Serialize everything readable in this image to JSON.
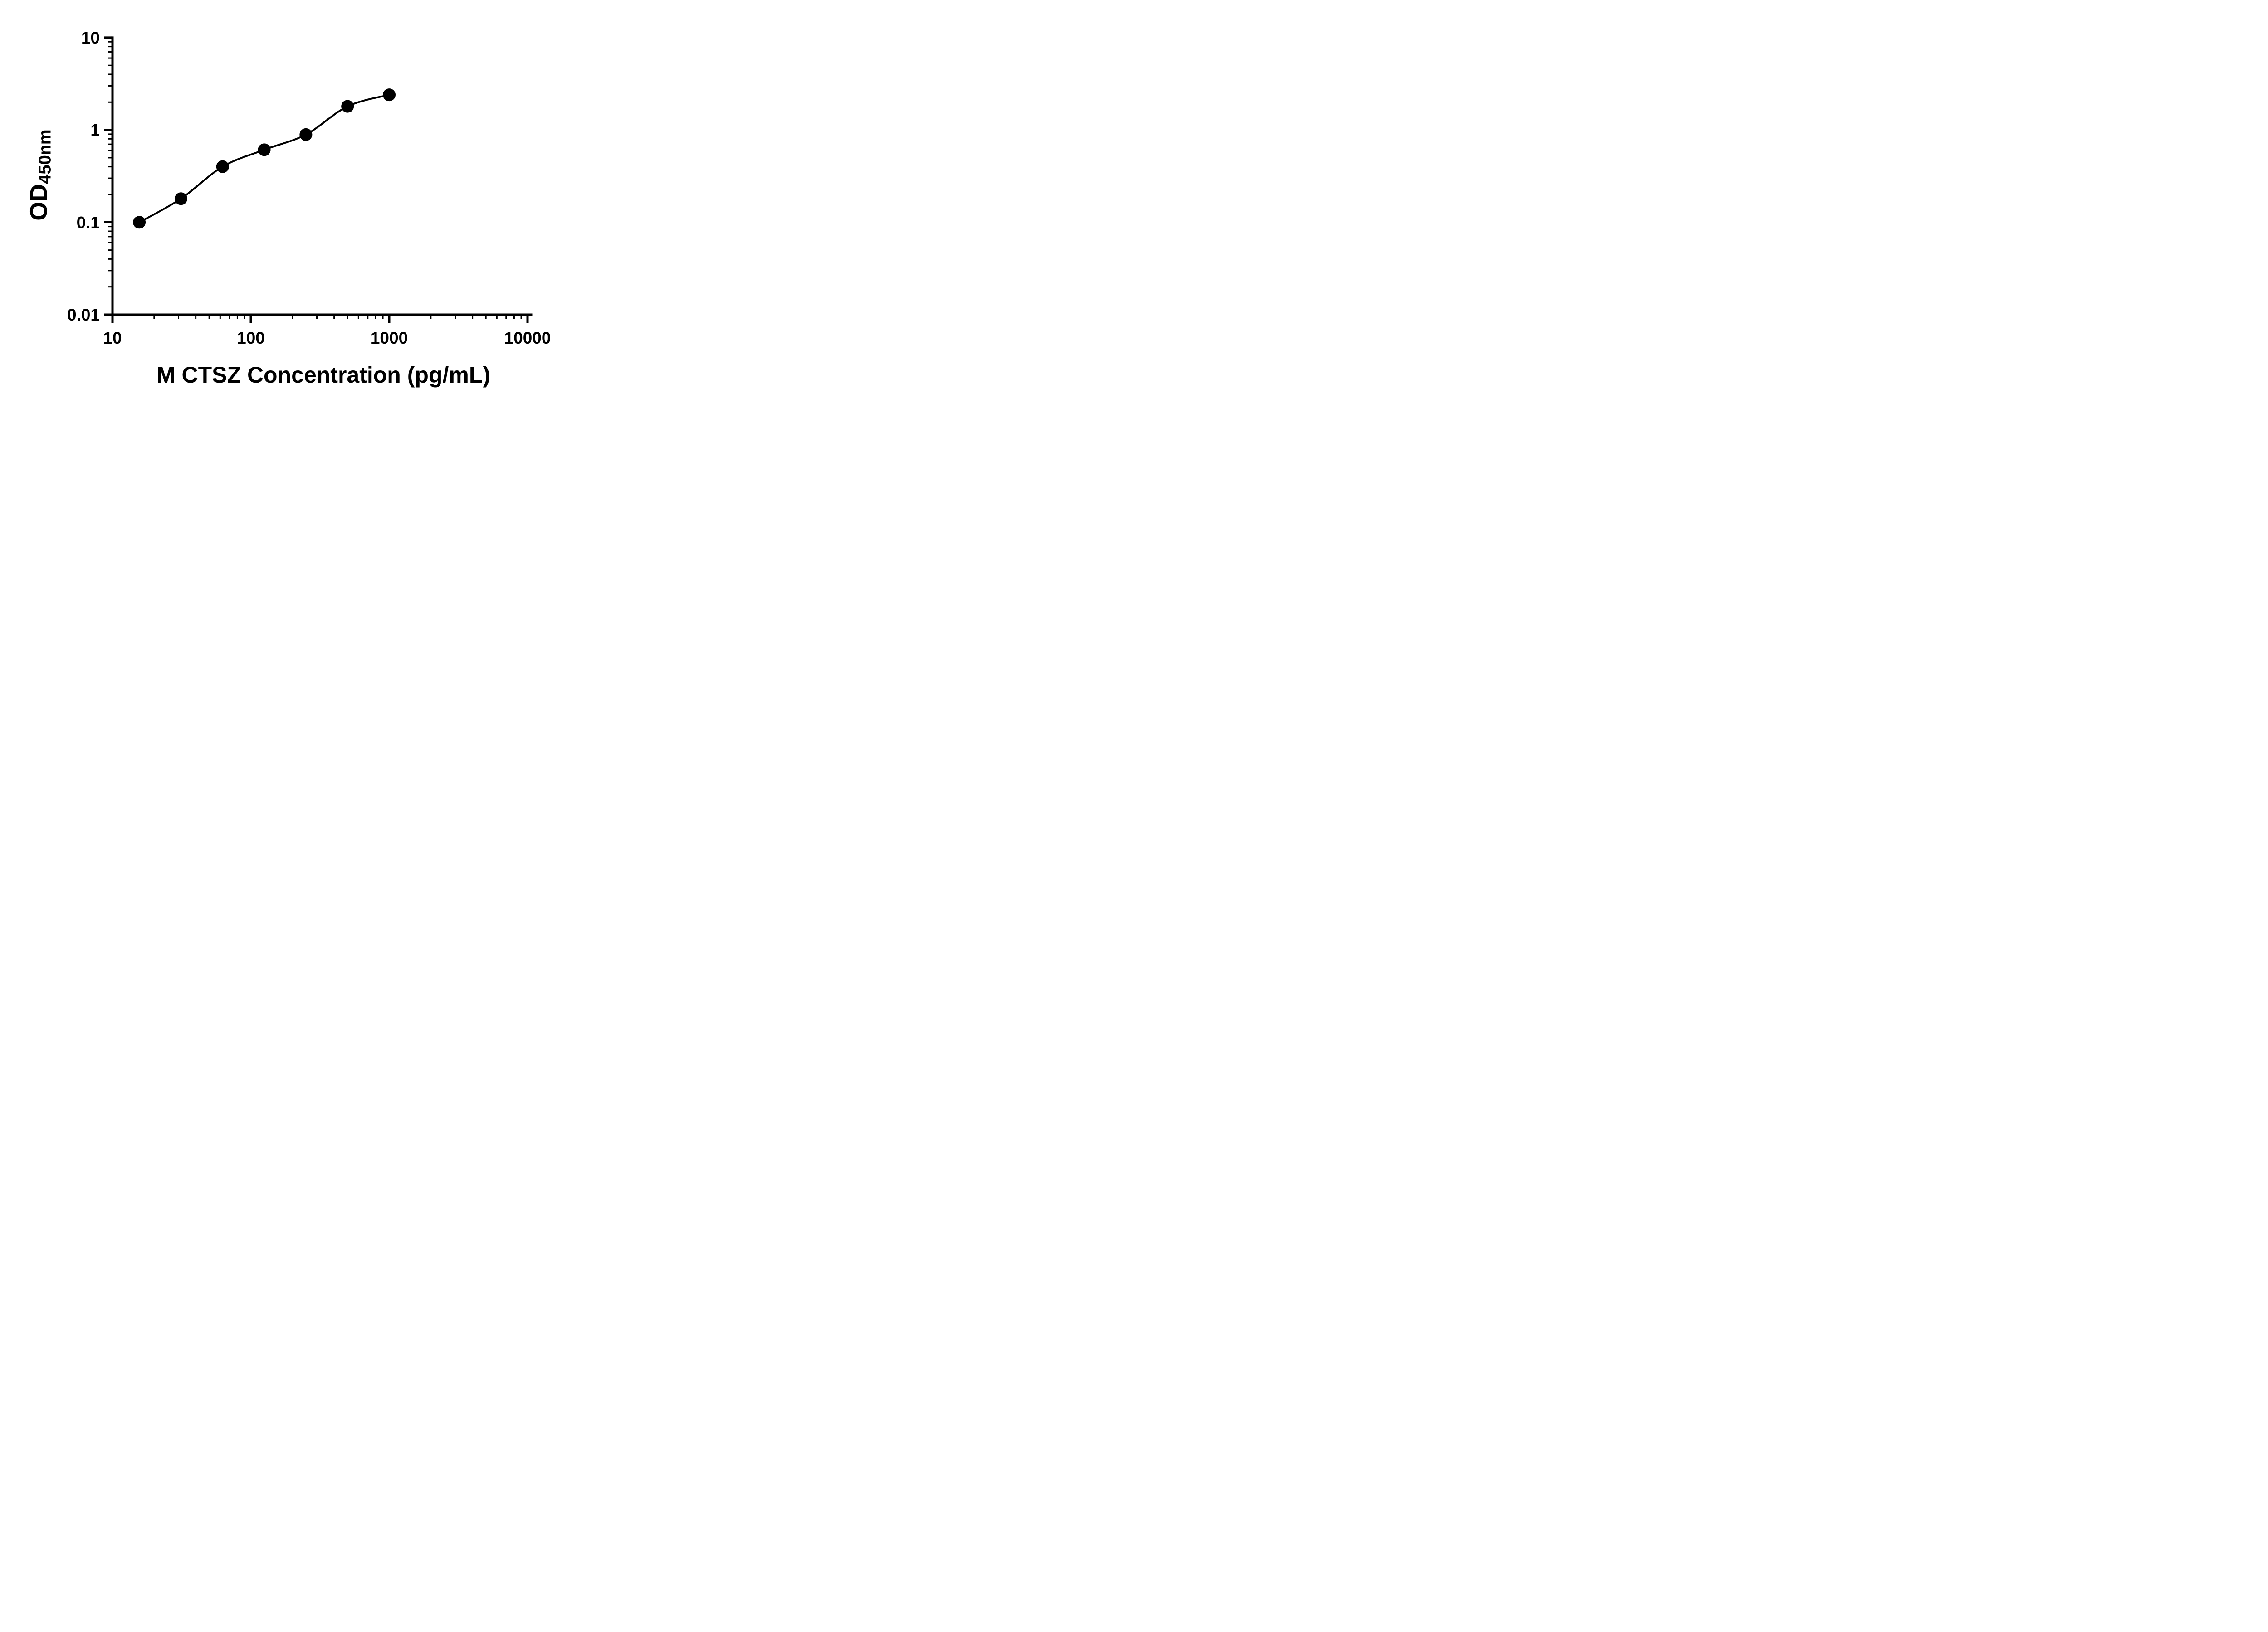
{
  "figure": {
    "background": "#ffffff",
    "foreground": "#000000"
  },
  "chart_data": {
    "type": "scatter",
    "title": "",
    "xlabel": "M CTSZ Concentration (pg/mL)",
    "ylabel_main": "OD",
    "ylabel_sub": "450nm",
    "x_scale": "log10",
    "y_scale": "log10",
    "xlim": [
      10,
      10000
    ],
    "ylim": [
      0.01,
      10
    ],
    "x_ticks": [
      10,
      100,
      1000,
      10000
    ],
    "x_tick_labels": [
      "10",
      "100",
      "1000",
      "10000"
    ],
    "y_ticks": [
      0.01,
      0.1,
      1,
      10
    ],
    "y_tick_labels": [
      "0.01",
      "0.1",
      "1",
      "10"
    ],
    "grid": false,
    "legend": "none",
    "series": [
      {
        "marker": "circle",
        "color": "#000000",
        "fit": "smooth-curve",
        "points": [
          {
            "x": 15.625,
            "y": 0.1
          },
          {
            "x": 31.25,
            "y": 0.18
          },
          {
            "x": 62.5,
            "y": 0.4
          },
          {
            "x": 125,
            "y": 0.61
          },
          {
            "x": 250,
            "y": 0.89
          },
          {
            "x": 500,
            "y": 1.8
          },
          {
            "x": 1000,
            "y": 2.4
          }
        ]
      }
    ]
  }
}
